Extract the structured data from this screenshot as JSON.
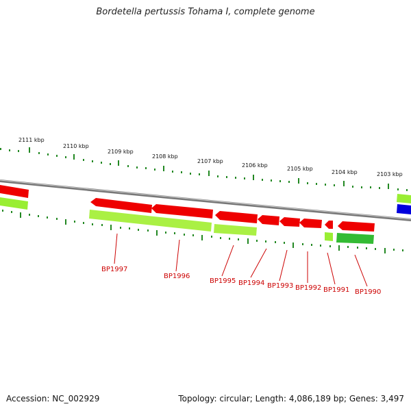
{
  "title": "Bordetella pertussis Tohama I, complete genome",
  "footer": {
    "accession": "Accession: NC_002929",
    "summary": "Topology: circular; Length: 4,086,189 bp; Genes: 3,497"
  },
  "scale_labels": [
    "2111 kbp",
    "2110 kbp",
    "2109 kbp",
    "2108 kbp",
    "2107 kbp",
    "2106 kbp",
    "2105 kbp",
    "2104 kbp",
    "2103 kbp"
  ],
  "gene_labels": [
    "BP1997",
    "BP1996",
    "BP1995",
    "BP1994",
    "BP1993",
    "BP1992",
    "BP1991",
    "BP1990"
  ],
  "colors": {
    "cds_reverse": "#ee0000",
    "cds_forward": "#0000dd",
    "gene_reverse": "#99ee33",
    "gene_dark": "#33bb33",
    "backbone": "#888888",
    "ticks": "#228822",
    "labels": "#cc0000"
  }
}
